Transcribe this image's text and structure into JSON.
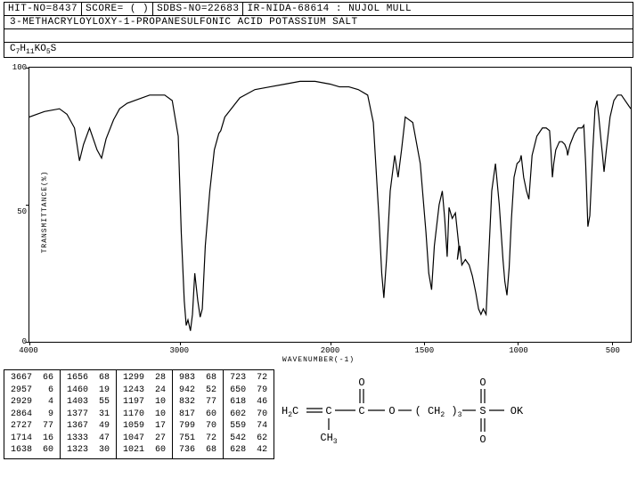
{
  "header": {
    "hit_no": "HIT-NO=8437",
    "score": "SCORE=  (  )",
    "sdbs_no": "SDBS-NO=22683",
    "ir_id": "IR-NIDA-68614 : NUJOL MULL"
  },
  "compound_name": "3-METHACRYLOYLOXY-1-PROPANESULFONIC ACID POTASSIUM SALT",
  "formula_parts": [
    "C",
    "7",
    "H",
    "11",
    "KO",
    "5",
    "S"
  ],
  "chart": {
    "type": "line",
    "y_label": "TRANSMITTANCE(%)",
    "x_label": "WAVENUMBER(-1)",
    "ylim": [
      0,
      100
    ],
    "yticks": [
      0,
      50,
      100
    ],
    "xlim": [
      4000,
      400
    ],
    "xticks": [
      4000,
      3000,
      2000,
      1500,
      1000,
      500
    ],
    "background_color": "#ffffff",
    "line_color": "#000000",
    "line_width": 1.2,
    "spectrum": [
      [
        4000,
        82
      ],
      [
        3900,
        84
      ],
      [
        3800,
        85
      ],
      [
        3750,
        83
      ],
      [
        3700,
        78
      ],
      [
        3667,
        66
      ],
      [
        3640,
        72
      ],
      [
        3600,
        78
      ],
      [
        3550,
        70
      ],
      [
        3520,
        67
      ],
      [
        3490,
        74
      ],
      [
        3440,
        81
      ],
      [
        3400,
        85
      ],
      [
        3350,
        87
      ],
      [
        3300,
        88
      ],
      [
        3200,
        90
      ],
      [
        3100,
        90
      ],
      [
        3050,
        88
      ],
      [
        3010,
        75
      ],
      [
        2990,
        40
      ],
      [
        2970,
        15
      ],
      [
        2957,
        6
      ],
      [
        2945,
        8
      ],
      [
        2929,
        4
      ],
      [
        2915,
        10
      ],
      [
        2900,
        25
      ],
      [
        2880,
        15
      ],
      [
        2864,
        9
      ],
      [
        2850,
        12
      ],
      [
        2830,
        35
      ],
      [
        2800,
        55
      ],
      [
        2770,
        70
      ],
      [
        2740,
        76
      ],
      [
        2727,
        77
      ],
      [
        2700,
        82
      ],
      [
        2600,
        89
      ],
      [
        2500,
        92
      ],
      [
        2400,
        93
      ],
      [
        2300,
        94
      ],
      [
        2200,
        95
      ],
      [
        2100,
        95
      ],
      [
        2000,
        94
      ],
      [
        1950,
        93
      ],
      [
        1900,
        93
      ],
      [
        1850,
        92
      ],
      [
        1800,
        90
      ],
      [
        1770,
        80
      ],
      [
        1740,
        45
      ],
      [
        1725,
        25
      ],
      [
        1714,
        16
      ],
      [
        1700,
        30
      ],
      [
        1680,
        55
      ],
      [
        1656,
        68
      ],
      [
        1638,
        60
      ],
      [
        1620,
        70
      ],
      [
        1600,
        82
      ],
      [
        1560,
        80
      ],
      [
        1520,
        65
      ],
      [
        1490,
        40
      ],
      [
        1475,
        25
      ],
      [
        1460,
        19
      ],
      [
        1445,
        35
      ],
      [
        1420,
        50
      ],
      [
        1403,
        55
      ],
      [
        1390,
        45
      ],
      [
        1377,
        31
      ],
      [
        1367,
        49
      ],
      [
        1350,
        45
      ],
      [
        1333,
        47
      ],
      [
        1315,
        35
      ],
      [
        1323,
        30
      ],
      [
        1310,
        35
      ],
      [
        1299,
        28
      ],
      [
        1280,
        30
      ],
      [
        1260,
        28
      ],
      [
        1243,
        24
      ],
      [
        1225,
        18
      ],
      [
        1210,
        12
      ],
      [
        1197,
        10
      ],
      [
        1185,
        12
      ],
      [
        1170,
        10
      ],
      [
        1160,
        25
      ],
      [
        1140,
        55
      ],
      [
        1120,
        65
      ],
      [
        1100,
        50
      ],
      [
        1080,
        30
      ],
      [
        1070,
        22
      ],
      [
        1059,
        17
      ],
      [
        1047,
        27
      ],
      [
        1035,
        45
      ],
      [
        1021,
        60
      ],
      [
        1005,
        65
      ],
      [
        990,
        66
      ],
      [
        983,
        68
      ],
      [
        970,
        60
      ],
      [
        955,
        55
      ],
      [
        942,
        52
      ],
      [
        925,
        68
      ],
      [
        900,
        75
      ],
      [
        870,
        78
      ],
      [
        850,
        78
      ],
      [
        832,
        77
      ],
      [
        825,
        70
      ],
      [
        817,
        60
      ],
      [
        810,
        65
      ],
      [
        799,
        70
      ],
      [
        780,
        73
      ],
      [
        765,
        73
      ],
      [
        751,
        72
      ],
      [
        740,
        70
      ],
      [
        736,
        68
      ],
      [
        730,
        70
      ],
      [
        723,
        72
      ],
      [
        700,
        76
      ],
      [
        680,
        78
      ],
      [
        660,
        78
      ],
      [
        650,
        79
      ],
      [
        640,
        65
      ],
      [
        628,
        42
      ],
      [
        618,
        46
      ],
      [
        610,
        58
      ],
      [
        602,
        70
      ],
      [
        590,
        85
      ],
      [
        580,
        88
      ],
      [
        570,
        82
      ],
      [
        559,
        74
      ],
      [
        550,
        68
      ],
      [
        542,
        62
      ],
      [
        530,
        70
      ],
      [
        510,
        82
      ],
      [
        490,
        88
      ],
      [
        470,
        90
      ],
      [
        450,
        90
      ],
      [
        430,
        88
      ],
      [
        410,
        86
      ],
      [
        400,
        85
      ]
    ]
  },
  "peak_table": {
    "columns": [
      [
        "3667  66",
        "2957   6",
        "2929   4",
        "2864   9",
        "2727  77",
        "1714  16",
        "1638  60"
      ],
      [
        "1656  68",
        "1460  19",
        "1403  55",
        "1377  31",
        "1367  49",
        "1333  47",
        "1323  30"
      ],
      [
        "1299  28",
        "1243  24",
        "1197  10",
        "1170  10",
        "1059  17",
        "1047  27",
        "1021  60"
      ],
      [
        "983  68",
        "942  52",
        "832  77",
        "817  60",
        "799  70",
        "751  72",
        "736  68"
      ],
      [
        "723  72",
        "650  79",
        "618  46",
        "602  70",
        "559  74",
        "542  62",
        "628  42"
      ]
    ]
  },
  "structure": {
    "text_left": "H₂C",
    "text_c": "C",
    "text_ch3": "CH₃",
    "text_co": "C",
    "text_o": "O",
    "text_chain": "O—( CH₂ )₃—S",
    "text_ok": "OK",
    "bond_color": "#000000"
  }
}
